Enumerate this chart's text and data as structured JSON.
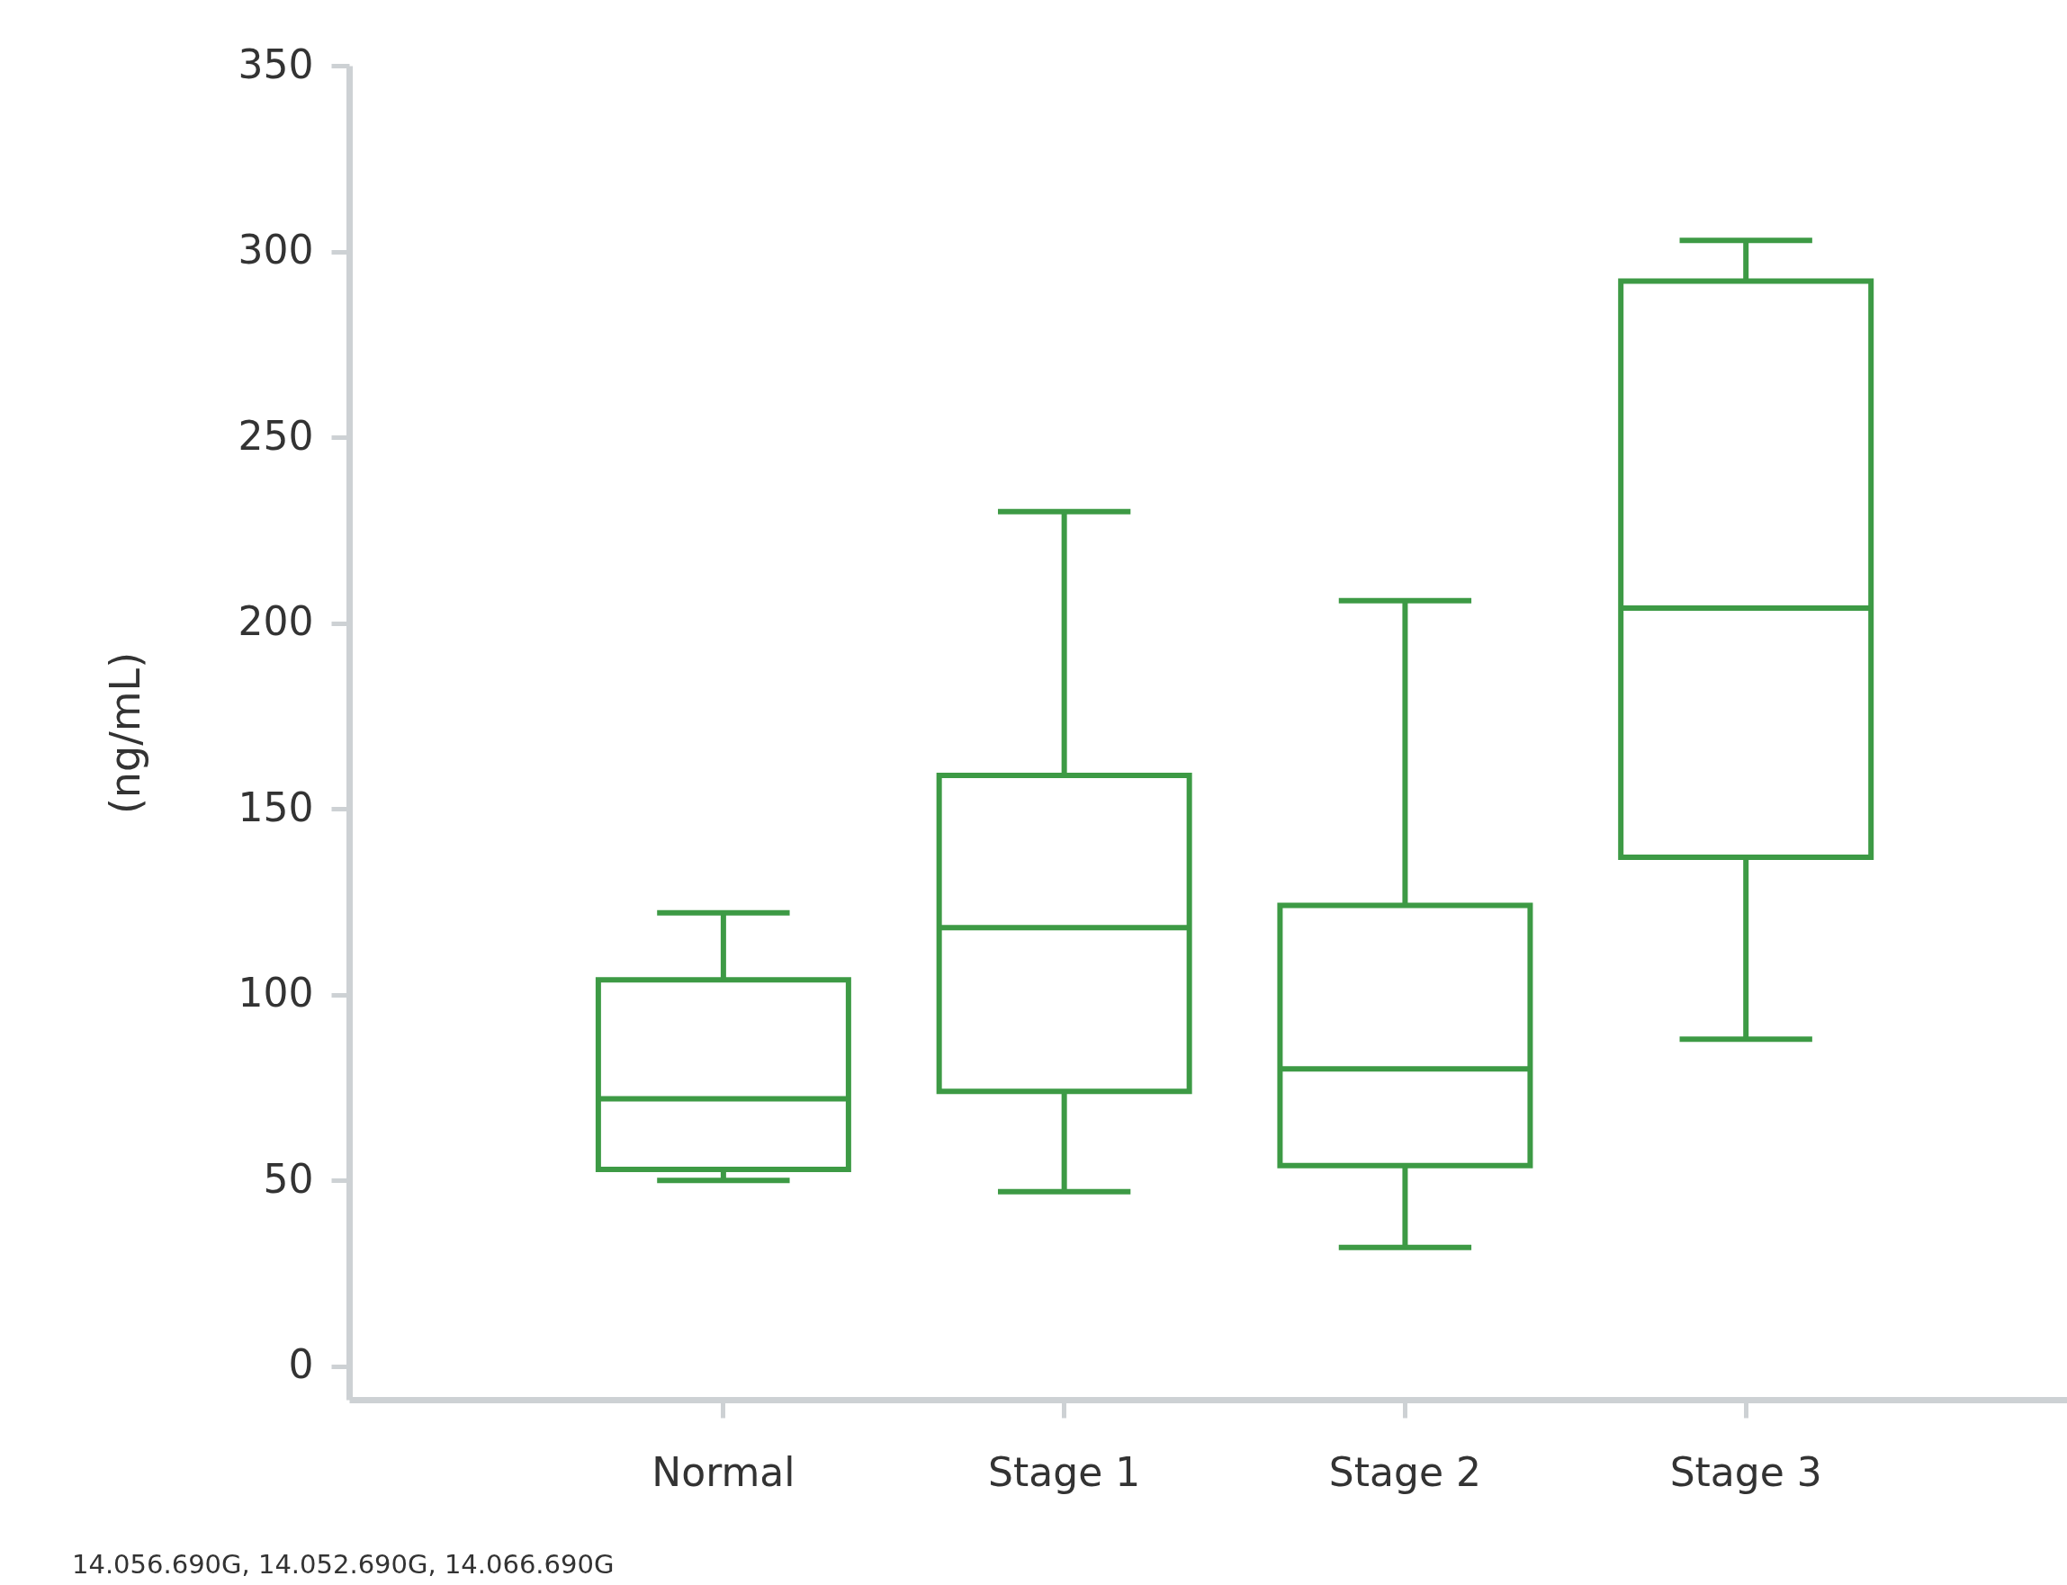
{
  "chart_data": {
    "type": "box",
    "ylabel": "(ng/mL)",
    "categories": [
      "Normal",
      "Stage 1",
      "Stage 2",
      "Stage 3"
    ],
    "color": "#3d9a45",
    "boxes": [
      {
        "low": 50,
        "q1": 53,
        "median": 72,
        "q3": 104,
        "high": 122
      },
      {
        "low": 47,
        "q1": 74,
        "median": 118,
        "q3": 159,
        "high": 230
      },
      {
        "low": 32,
        "q1": 54,
        "median": 80,
        "q3": 124,
        "high": 206
      },
      {
        "low": 88,
        "q1": 137,
        "median": 204,
        "q3": 292,
        "high": 303
      }
    ],
    "ylim": [
      -9,
      350
    ],
    "yticks": [
      0,
      50,
      100,
      150,
      200,
      250,
      300,
      350
    ],
    "grid": false,
    "annotations": [
      "14.056.690G, 14.052.690G, 14.066.690G"
    ]
  }
}
